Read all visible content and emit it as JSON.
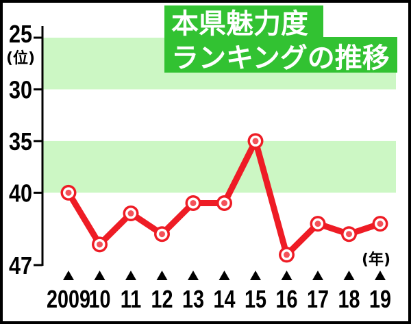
{
  "chart_data": {
    "type": "line",
    "title_lines": [
      "本県魅力度",
      "ランキングの推移"
    ],
    "categories": [
      "2009",
      "10",
      "11",
      "12",
      "13",
      "14",
      "15",
      "16",
      "17",
      "18",
      "19"
    ],
    "values": [
      40,
      45,
      42,
      44,
      41,
      41,
      35,
      46,
      43,
      44,
      43
    ],
    "x_unit": "(年)",
    "y_unit": "(位)",
    "y_ticks": [
      25,
      30,
      35,
      40,
      47
    ],
    "ylim": [
      25,
      47
    ],
    "y_inverted": true,
    "shaded_bands": [
      [
        25,
        30
      ],
      [
        35,
        40
      ]
    ],
    "grid": false,
    "colors": {
      "line": "#ee1c25",
      "marker_ring": "#ffffff",
      "marker_center": "#f4525a",
      "band": "#ccf7c4",
      "title_background": "#32c232",
      "title_text": "#ffffff",
      "axis": "#000000"
    }
  }
}
